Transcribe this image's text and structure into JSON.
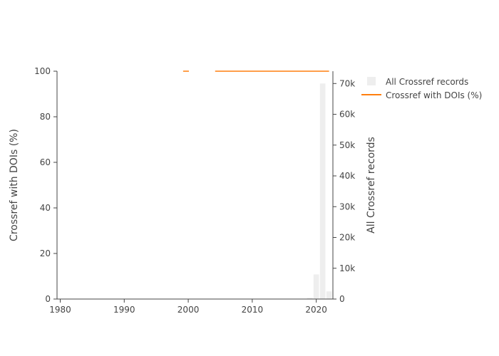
{
  "chart_data": {
    "type": "bar",
    "x_range": [
      1979.5,
      2022.6
    ],
    "x_ticks": [
      1980,
      1990,
      2000,
      2010,
      2020
    ],
    "y_left": {
      "label": "Crossref with DOIs (%)",
      "range": [
        0,
        100
      ],
      "ticks": [
        0,
        20,
        40,
        60,
        80,
        100
      ],
      "tick_labels": [
        "0",
        "20",
        "40",
        "60",
        "80",
        "100"
      ]
    },
    "y_right": {
      "label": "All Crossref records",
      "range": [
        0,
        74000
      ],
      "ticks": [
        0,
        10000,
        20000,
        30000,
        40000,
        50000,
        60000,
        70000
      ],
      "tick_labels": [
        "0",
        "10k",
        "20k",
        "30k",
        "40k",
        "50k",
        "60k",
        "70k"
      ]
    },
    "series": [
      {
        "name": "All Crossref records",
        "type": "bar",
        "axis": "right",
        "color": "#eeeeee",
        "x": [
          2019,
          2020,
          2021,
          2022
        ],
        "values": [
          400,
          8000,
          70000,
          2500
        ]
      },
      {
        "name": "Crossref with DOIs (%)",
        "type": "line",
        "axis": "left",
        "color": "#ff7f0e",
        "segments": [
          {
            "x": [
              1999.2,
              2000.1
            ],
            "values": [
              100,
              100
            ]
          },
          {
            "x": [
              2004.2,
              2022.0
            ],
            "values": [
              100,
              100
            ]
          }
        ]
      }
    ],
    "legend": {
      "placement": "top-right",
      "entries": [
        "All Crossref records",
        "Crossref with DOIs (%)"
      ]
    },
    "grid": false
  }
}
